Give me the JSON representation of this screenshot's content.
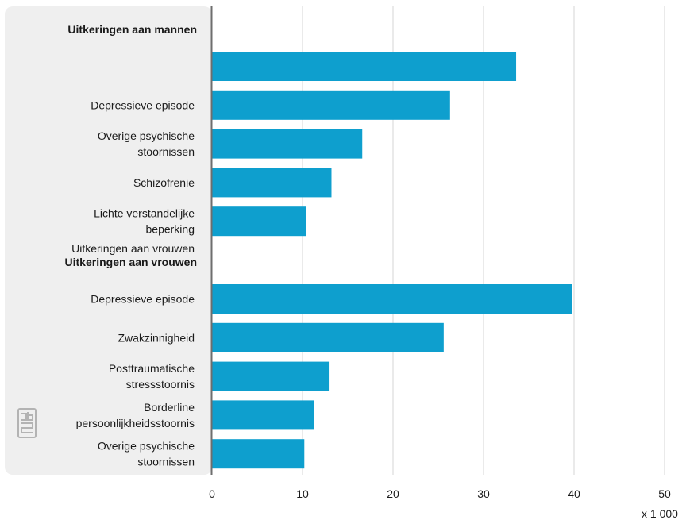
{
  "colors": {
    "bar": "#0e9fce",
    "label_panel": "#efefef",
    "grid": "#d6d6d6",
    "axis": "#6e6e6e",
    "logo": "#b3b3b3"
  },
  "logo_text": "cbs",
  "chart_data": {
    "type": "bar",
    "orientation": "horizontal",
    "xlim": [
      0,
      50
    ],
    "x_ticks": [
      "0",
      "10",
      "20",
      "30",
      "40",
      "50"
    ],
    "x_unit_label": "x 1 000",
    "grid": true,
    "groups": [
      {
        "title": "Uitkeringen aan mannen",
        "bars": [
          {
            "label": [],
            "value": 33.6
          },
          {
            "label": [
              "Depressieve episode"
            ],
            "value": 26.3
          },
          {
            "label": [
              "Overige psychische",
              "stoornissen"
            ],
            "value": 16.6
          },
          {
            "label": [
              "Schizofrenie"
            ],
            "value": 13.2
          },
          {
            "label": [
              "Lichte verstandelijke",
              "beperking"
            ],
            "value": 10.4
          }
        ]
      },
      {
        "title": "Uitkeringen aan vrouwen",
        "subtitle": "Uitkeringen aan vrouwen",
        "bars": [
          {
            "label": [
              "Depressieve episode"
            ],
            "value": 39.8
          },
          {
            "label": [
              "Zwakzinnigheid"
            ],
            "value": 25.6
          },
          {
            "label": [
              "Posttraumatische",
              "stressstoornis"
            ],
            "value": 12.9
          },
          {
            "label": [
              "Borderline",
              "persoonlijkheidsstoornis"
            ],
            "value": 11.3
          },
          {
            "label": [
              "Overige psychische",
              "stoornissen"
            ],
            "value": 10.2
          }
        ]
      }
    ]
  }
}
